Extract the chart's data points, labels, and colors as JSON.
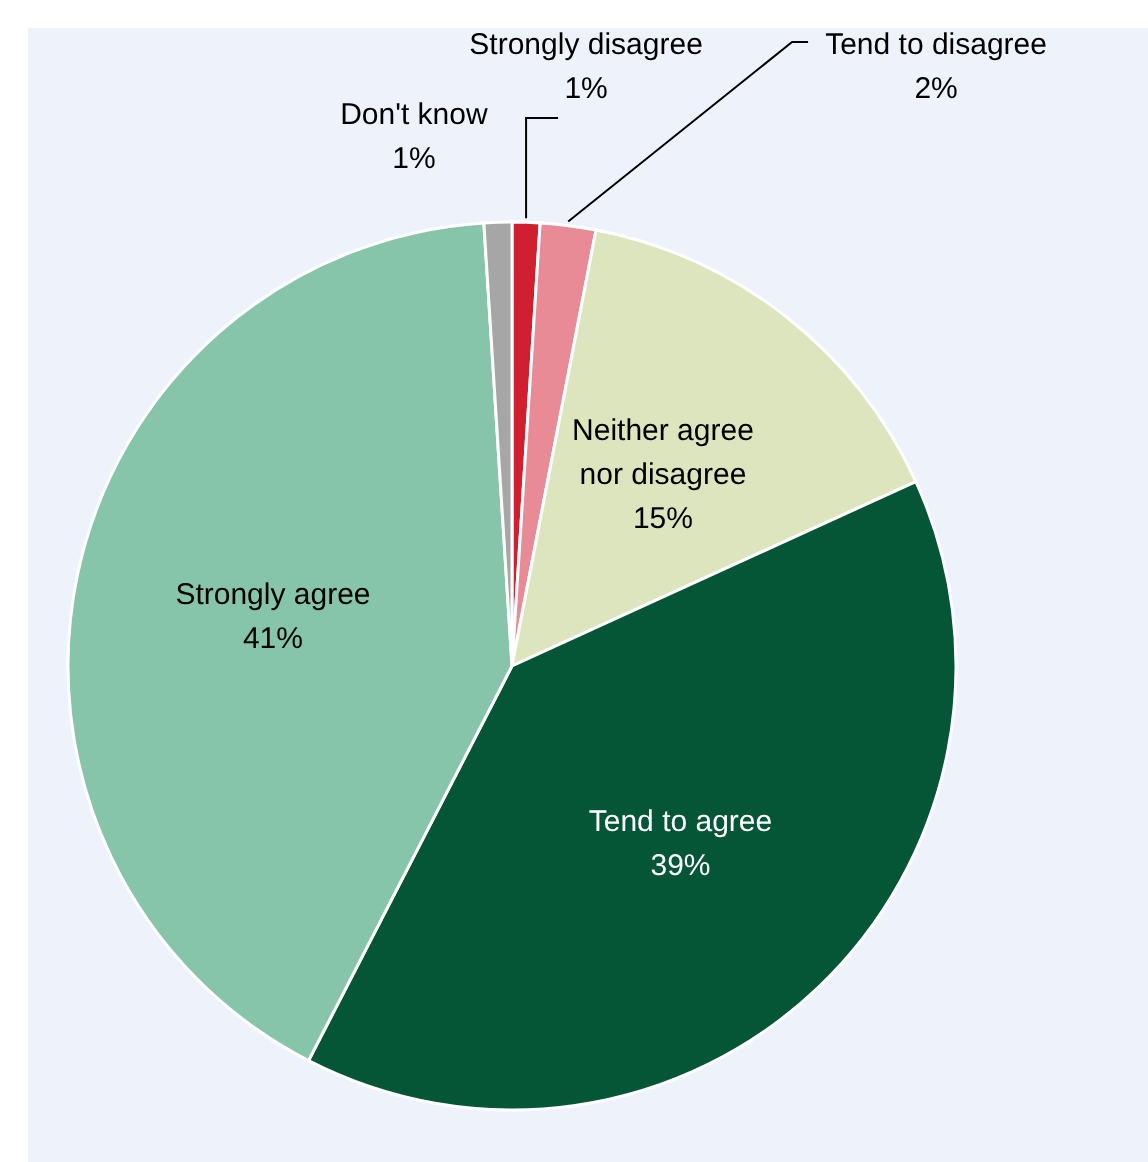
{
  "chart_data": {
    "type": "pie",
    "categories": [
      "Strongly disagree",
      "Tend to disagree",
      "Neither agree nor disagree",
      "Tend to agree",
      "Strongly agree",
      "Don't know"
    ],
    "values": [
      1,
      2,
      15,
      39,
      41,
      1
    ],
    "colors": [
      "#d01f2e",
      "#e88b97",
      "#dce5bd",
      "#045636",
      "#86c5aa",
      "#a6a6a6"
    ],
    "value_labels": [
      "1%",
      "2%",
      "15%",
      "39%",
      "41%",
      "1%"
    ]
  }
}
